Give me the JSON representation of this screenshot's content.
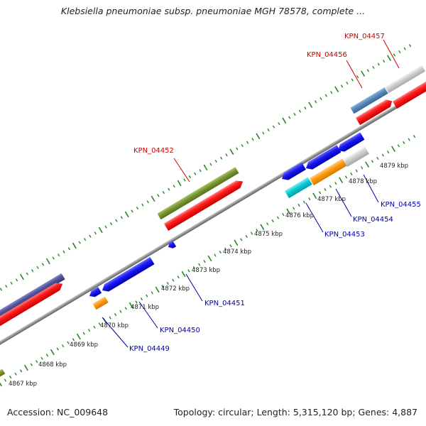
{
  "title": "Klebsiella pneumoniae subsp. pneumoniae MGH 78578, complete ...",
  "footer": {
    "accession": "Accession: NC_009648",
    "info": "Topology: circular; Length: 5,315,120 bp; Genes: 4,887"
  },
  "colors": {
    "forward_label": "#cc0000",
    "reverse_label": "#0000aa",
    "tick": "#228822",
    "backbone": "#888888",
    "cds": "#ee0000",
    "olive": "#6b8e23",
    "purple": "#4b4b96",
    "steel": "#4f7fb0",
    "grey": "#c8c8c8",
    "blue": "#1010ee",
    "orange": "#ff9900",
    "cyan": "#00c8d2"
  },
  "scale": {
    "unit": "kbp",
    "labels": [
      "4867 kbp",
      "4868 kbp",
      "4869 kbp",
      "4870 kbp",
      "4871 kbp",
      "4872 kbp",
      "4873 kbp",
      "4874 kbp",
      "4875 kbp",
      "4876 kbp",
      "4877 kbp",
      "4878 kbp",
      "4879 kbp"
    ]
  },
  "forward_labels": [
    "KPN_04452",
    "KPN_04456",
    "KPN_04457"
  ],
  "reverse_labels": [
    "KPN_04449",
    "KPN_04450",
    "KPN_04451",
    "KPN_04453",
    "KPN_04454",
    "KPN_04455"
  ]
}
